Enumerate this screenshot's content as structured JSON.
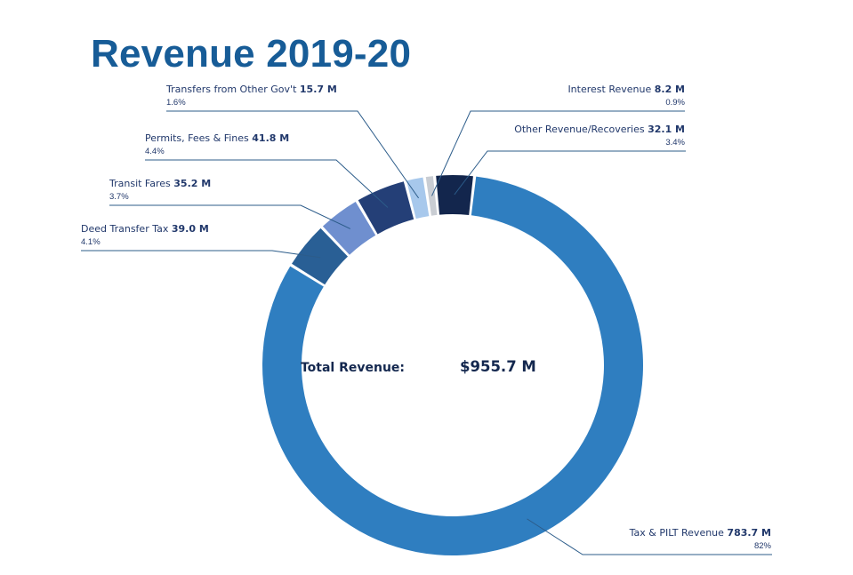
{
  "title": "Revenue 2019-20",
  "chart_data": {
    "type": "pie",
    "style": "donut",
    "title": "Revenue 2019-20",
    "center_label": "Total Revenue:",
    "center_value": "$955.7 M",
    "total": 955.7,
    "unit": "M",
    "slices": [
      {
        "label": "Tax & PILT Revenue",
        "value": 783.7,
        "value_text": "783.7 M",
        "percent_text": "82%",
        "color": "#2f7ec0"
      },
      {
        "label": "Deed Transfer Tax",
        "value": 39.0,
        "value_text": "39.0 M",
        "percent_text": "4.1%",
        "color": "#295f95"
      },
      {
        "label": "Transit Fares",
        "value": 35.2,
        "value_text": "35.2 M",
        "percent_text": "3.7%",
        "color": "#6f8fcf"
      },
      {
        "label": "Permits, Fees & Fines",
        "value": 41.8,
        "value_text": "41.8 M",
        "percent_text": "4.4%",
        "color": "#243f77"
      },
      {
        "label": "Transfers from Other Gov't",
        "value": 15.7,
        "value_text": "15.7 M",
        "percent_text": "1.6%",
        "color": "#a7c8ec"
      },
      {
        "label": "Interest Revenue",
        "value": 8.2,
        "value_text": "8.2 M",
        "percent_text": "0.9%",
        "color": "#c9cdd3"
      },
      {
        "label": "Other Revenue/Recoveries",
        "value": 32.1,
        "value_text": "32.1 M",
        "percent_text": "3.4%",
        "color": "#13264d"
      }
    ]
  }
}
